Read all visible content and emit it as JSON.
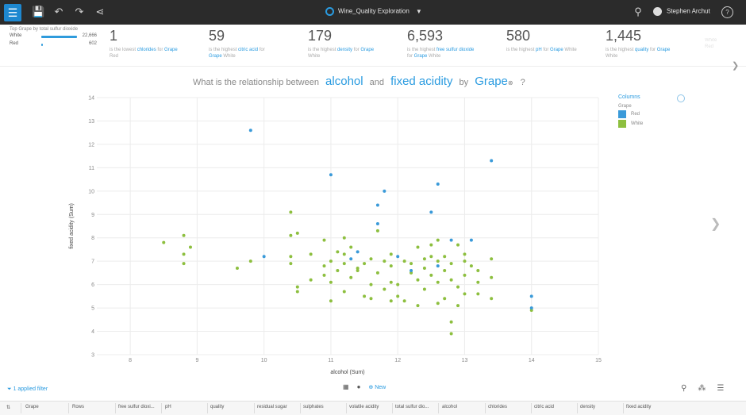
{
  "topbar": {
    "icons": [
      "menu-icon",
      "save-icon",
      "undo-icon",
      "redo-icon",
      "share-icon"
    ],
    "title": "Wine_Quality Exploration",
    "user": "Stephen Archut",
    "help": "?"
  },
  "mini_chart": {
    "title": "Top Grape by total sulfur dioxide",
    "rows": [
      {
        "label": "White",
        "value": "22,666",
        "fraction": 1.0
      },
      {
        "label": "Red",
        "value": "602",
        "fraction": 0.03
      }
    ]
  },
  "kpis": [
    {
      "value": "1",
      "pre": "is the lowest ",
      "field": "chlorides",
      "mid": " for ",
      "dim": "Grape",
      "member": "Red"
    },
    {
      "value": "59",
      "pre": "is the highest ",
      "field": "citric acid",
      "mid": " for ",
      "dim": "Grape",
      "member": "White"
    },
    {
      "value": "179",
      "pre": "is the highest ",
      "field": "density",
      "mid": " for ",
      "dim": "Grape",
      "member": "White"
    },
    {
      "value": "6,593",
      "pre": "is the highest ",
      "field": "free sulfur dioxide",
      "mid": " for ",
      "dim": "Grape",
      "member": "White"
    },
    {
      "value": "580",
      "pre": "is the highest ",
      "field": "pH",
      "mid": " for ",
      "dim": "Grape",
      "member": "White"
    },
    {
      "value": "1,445",
      "pre": "is the highest ",
      "field": "quality",
      "mid": " for ",
      "dim": "Grape",
      "member": "White"
    }
  ],
  "kpi_overflow": {
    "line1": "White",
    "line2": "Red"
  },
  "question": {
    "prefix": "What is the relationship between",
    "field1": "alcohol",
    "and": "and",
    "field2": "fixed acidity",
    "by": "by",
    "dim": "Grape",
    "suffix": "?"
  },
  "legend": {
    "title": "Columns",
    "subtitle": "Grape",
    "items": [
      {
        "label": "Red",
        "color": "#3a9ad9"
      },
      {
        "label": "White",
        "color": "#8dbf3f"
      }
    ]
  },
  "chart_data": {
    "type": "scatter",
    "xlabel": "alcohol (Sum)",
    "ylabel": "fixed acidity (Sum)",
    "xlim": [
      7.5,
      15
    ],
    "ylim": [
      3,
      14
    ],
    "xticks": [
      8,
      9,
      10,
      11,
      12,
      13,
      14,
      15
    ],
    "yticks": [
      3,
      4,
      5,
      6,
      7,
      8,
      9,
      10,
      11,
      12,
      13,
      14
    ],
    "grid": true,
    "series": [
      {
        "name": "Red",
        "color": "#3a9ad9",
        "points": [
          [
            9.8,
            12.6
          ],
          [
            11.0,
            10.7
          ],
          [
            11.8,
            10.0
          ],
          [
            11.7,
            9.4
          ],
          [
            12.6,
            10.3
          ],
          [
            12.5,
            9.1
          ],
          [
            13.4,
            11.3
          ],
          [
            11.7,
            8.6
          ],
          [
            12.8,
            7.9
          ],
          [
            13.1,
            7.9
          ],
          [
            10.0,
            7.2
          ],
          [
            11.4,
            7.4
          ],
          [
            14.0,
            5.5
          ],
          [
            14.0,
            5.0
          ],
          [
            12.0,
            7.2
          ],
          [
            12.6,
            6.8
          ],
          [
            11.3,
            7.1
          ],
          [
            12.2,
            6.6
          ]
        ]
      },
      {
        "name": "White",
        "color": "#8dbf3f",
        "points": [
          [
            8.5,
            7.8
          ],
          [
            8.8,
            8.1
          ],
          [
            8.8,
            7.3
          ],
          [
            8.8,
            6.9
          ],
          [
            8.9,
            7.6
          ],
          [
            9.6,
            6.7
          ],
          [
            9.8,
            7.0
          ],
          [
            10.4,
            9.1
          ],
          [
            10.4,
            8.1
          ],
          [
            10.5,
            8.2
          ],
          [
            10.4,
            7.2
          ],
          [
            10.4,
            6.9
          ],
          [
            10.5,
            5.9
          ],
          [
            10.5,
            5.7
          ],
          [
            10.7,
            7.3
          ],
          [
            10.7,
            6.2
          ],
          [
            10.9,
            7.9
          ],
          [
            10.9,
            6.8
          ],
          [
            10.9,
            6.4
          ],
          [
            11.0,
            7.0
          ],
          [
            11.0,
            6.1
          ],
          [
            11.0,
            5.3
          ],
          [
            11.1,
            7.4
          ],
          [
            11.1,
            6.6
          ],
          [
            11.2,
            8.0
          ],
          [
            11.2,
            7.3
          ],
          [
            11.2,
            6.9
          ],
          [
            11.2,
            5.7
          ],
          [
            11.3,
            6.3
          ],
          [
            11.3,
            7.6
          ],
          [
            11.4,
            6.7
          ],
          [
            11.5,
            6.9
          ],
          [
            11.5,
            5.5
          ],
          [
            11.6,
            7.1
          ],
          [
            11.6,
            6.0
          ],
          [
            11.6,
            5.4
          ],
          [
            11.7,
            8.3
          ],
          [
            11.7,
            6.5
          ],
          [
            11.8,
            7.0
          ],
          [
            11.8,
            5.8
          ],
          [
            11.9,
            6.8
          ],
          [
            11.9,
            5.3
          ],
          [
            11.9,
            7.3
          ],
          [
            12.0,
            6.0
          ],
          [
            12.1,
            7.0
          ],
          [
            12.1,
            5.3
          ],
          [
            12.2,
            6.9
          ],
          [
            12.2,
            6.5
          ],
          [
            12.3,
            7.6
          ],
          [
            12.3,
            6.2
          ],
          [
            12.4,
            7.1
          ],
          [
            12.4,
            6.7
          ],
          [
            12.4,
            5.8
          ],
          [
            12.5,
            7.7
          ],
          [
            12.5,
            7.2
          ],
          [
            12.5,
            6.4
          ],
          [
            12.6,
            7.9
          ],
          [
            12.6,
            7.0
          ],
          [
            12.6,
            6.1
          ],
          [
            12.7,
            7.2
          ],
          [
            12.7,
            6.6
          ],
          [
            12.7,
            5.4
          ],
          [
            12.8,
            6.9
          ],
          [
            12.8,
            6.2
          ],
          [
            12.8,
            4.4
          ],
          [
            12.8,
            3.9
          ],
          [
            12.9,
            7.7
          ],
          [
            12.9,
            5.9
          ],
          [
            13.0,
            7.3
          ],
          [
            13.0,
            6.4
          ],
          [
            13.0,
            5.6
          ],
          [
            13.1,
            6.8
          ],
          [
            13.2,
            5.6
          ],
          [
            13.2,
            6.1
          ],
          [
            13.2,
            6.6
          ],
          [
            13.4,
            7.1
          ],
          [
            13.4,
            5.4
          ],
          [
            13.4,
            6.3
          ],
          [
            12.3,
            5.1
          ],
          [
            12.9,
            5.1
          ],
          [
            12.0,
            5.5
          ],
          [
            11.4,
            6.6
          ],
          [
            11.9,
            6.1
          ],
          [
            12.6,
            5.2
          ],
          [
            13.0,
            7.0
          ],
          [
            14.0,
            4.9
          ]
        ]
      }
    ]
  },
  "bottom": {
    "filter": "1 applied filter",
    "new": "New",
    "columns": [
      "Grape",
      "Rows",
      "free sulfur dioxi...",
      "pH",
      "quality",
      "residual sugar",
      "sulphates",
      "volatile acidity",
      "total sulfur dio...",
      "alcohol",
      "chlorides",
      "citric acid",
      "density",
      "fixed acidity"
    ]
  }
}
